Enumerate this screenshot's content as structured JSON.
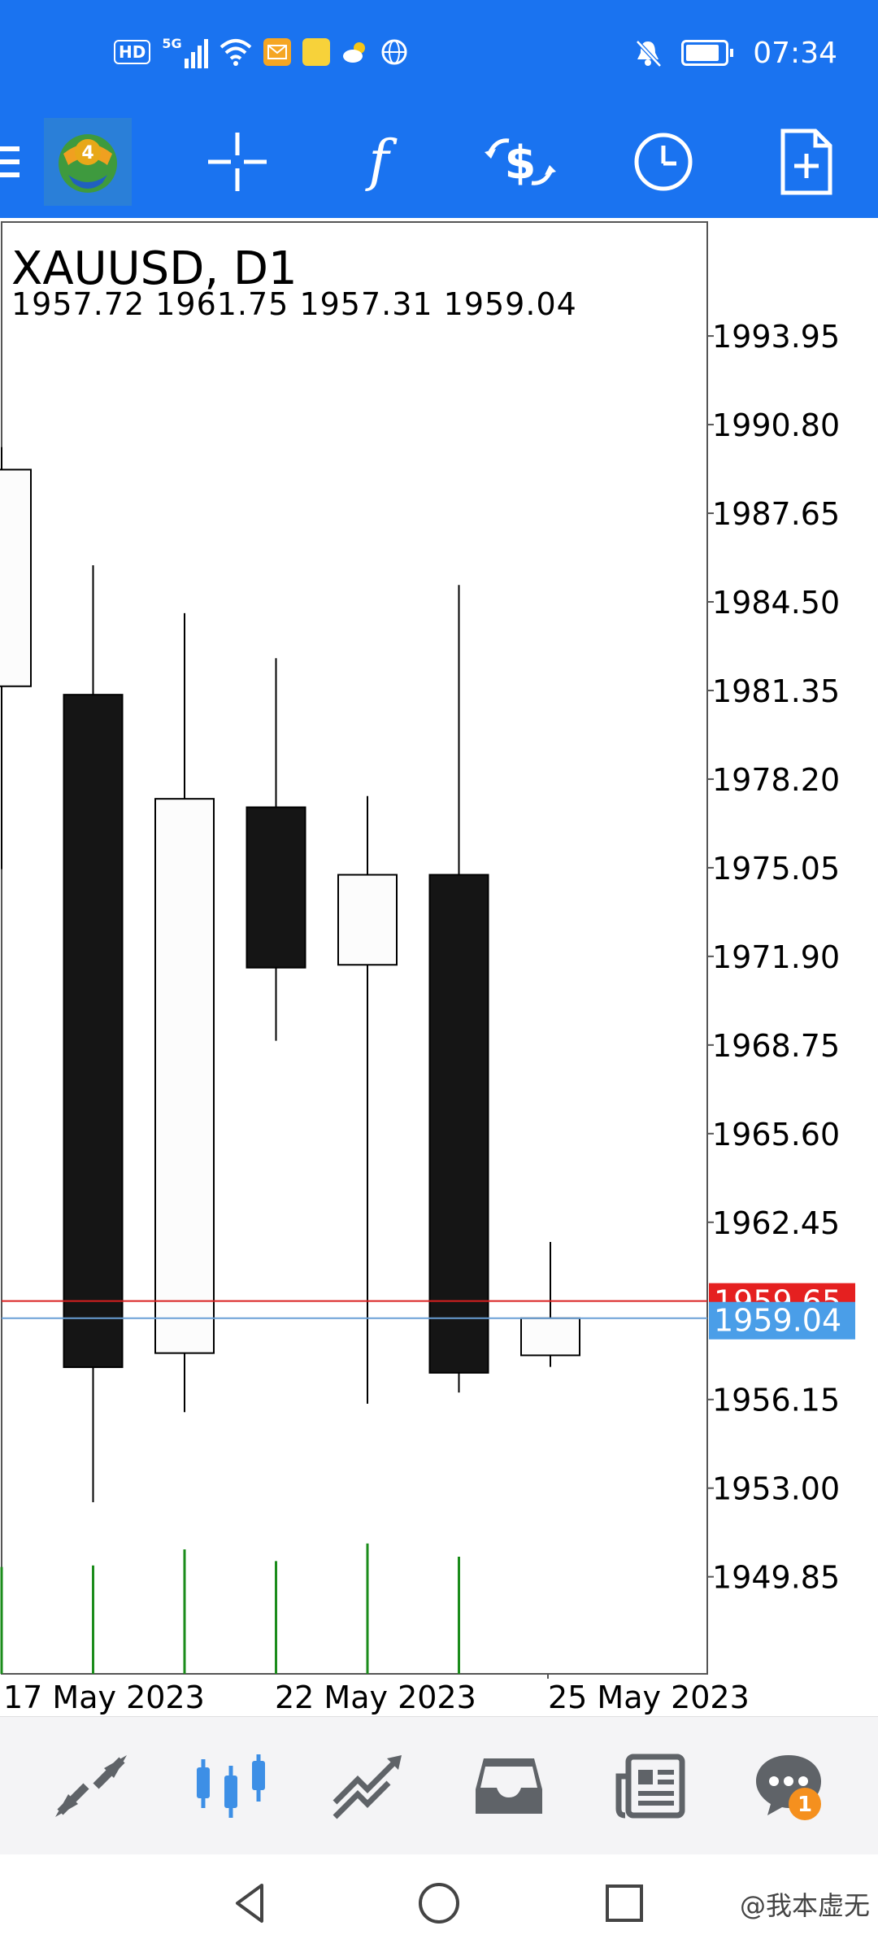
{
  "status_bar": {
    "time": "07:34",
    "network": "5G",
    "hd": "HD",
    "icons": [
      "hd-icon",
      "signal-5g-icon",
      "wifi-icon",
      "mail-icon",
      "app-icon",
      "weather-icon",
      "globe-icon",
      "mute-bell-icon",
      "battery-icon"
    ]
  },
  "toolbar": {
    "icons": [
      "menu-icon",
      "mt4-logo-icon",
      "crosshair-icon",
      "function-icon",
      "currency-exchange-icon",
      "clock-icon",
      "new-document-icon"
    ],
    "logo_number": "4"
  },
  "chart": {
    "symbol": "XAUUSD, D1",
    "ohlc": "1957.72 1961.75 1957.31 1959.04",
    "bid_label": "1959.04",
    "ask_label": "1959.65",
    "colors": {
      "bid_line": "#6a9fd6",
      "ask_line": "#d92020",
      "bid_bg": "#4a9ee8",
      "ask_bg": "#e52020",
      "volume": "#1b8c1b"
    }
  },
  "chart_data": {
    "type": "candlestick",
    "title": "XAUUSD, D1",
    "y_ticks": [
      "1993.95",
      "1990.80",
      "1987.65",
      "1984.50",
      "1981.35",
      "1978.20",
      "1975.05",
      "1971.90",
      "1968.75",
      "1965.60",
      "1962.45",
      "1956.15",
      "1953.00",
      "1949.85"
    ],
    "ylim": [
      1946.4,
      1998.0
    ],
    "x_labels": [
      "17 May 2023",
      "22 May 2023",
      "25 May 2023"
    ],
    "candles": [
      {
        "open": 1981.5,
        "high": 1990.0,
        "low": 1975.0,
        "close": 1989.2
      },
      {
        "open": 1981.2,
        "high": 1985.8,
        "low": 1952.5,
        "close": 1957.3
      },
      {
        "open": 1957.8,
        "high": 1984.1,
        "low": 1955.7,
        "close": 1977.5
      },
      {
        "open": 1977.2,
        "high": 1982.5,
        "low": 1968.9,
        "close": 1971.5
      },
      {
        "open": 1971.6,
        "high": 1977.6,
        "low": 1956.0,
        "close": 1974.8
      },
      {
        "open": 1974.8,
        "high": 1985.1,
        "low": 1956.4,
        "close": 1957.1
      },
      {
        "open": 1957.72,
        "high": 1961.75,
        "low": 1957.31,
        "close": 1959.04
      }
    ],
    "bid": 1959.04,
    "ask": 1959.65,
    "volumes": [
      0.73,
      0.74,
      0.85,
      0.77,
      0.89,
      0.8,
      0.0
    ],
    "grid": false
  },
  "bottom_nav": {
    "items": [
      "quotes-icon",
      "chart-icon",
      "trade-icon",
      "inbox-icon",
      "news-icon",
      "chat-icon"
    ],
    "chat_badge": "1"
  },
  "system_nav": {
    "items": [
      "back-icon",
      "home-icon",
      "recents-icon"
    ]
  },
  "watermark": "@我本虚无"
}
